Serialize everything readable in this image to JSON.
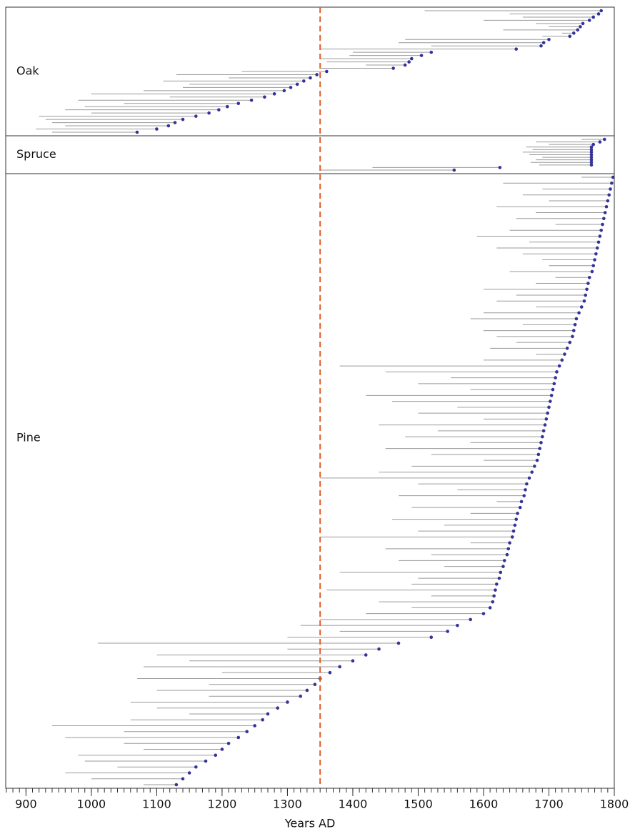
{
  "chart_data": {
    "type": "span",
    "xlabel": "Years AD",
    "xlim": [
      869,
      1800
    ],
    "xticks": [
      900,
      1000,
      1100,
      1200,
      1300,
      1400,
      1500,
      1600,
      1700,
      1800
    ],
    "xminorticks": [
      870,
      880,
      890,
      900,
      910,
      920,
      930,
      940,
      950,
      960,
      970,
      980,
      990,
      1000,
      1010,
      1020,
      1030,
      1040,
      1050,
      1060,
      1070,
      1080,
      1090,
      1100,
      1110,
      1120,
      1130,
      1140,
      1150,
      1160,
      1170,
      1180,
      1190,
      1200,
      1210,
      1220,
      1230,
      1240,
      1250,
      1260,
      1270,
      1280,
      1290,
      1300,
      1310,
      1320,
      1330,
      1340,
      1350,
      1360,
      1370,
      1380,
      1390,
      1400,
      1410,
      1420,
      1430,
      1440,
      1450,
      1460,
      1470,
      1480,
      1490,
      1500,
      1510,
      1520,
      1530,
      1540,
      1550,
      1560,
      1570,
      1580,
      1590,
      1600,
      1610,
      1620,
      1630,
      1640,
      1650,
      1660,
      1670,
      1680,
      1690,
      1700,
      1710,
      1720,
      1730,
      1740,
      1750,
      1760,
      1770,
      1780,
      1790,
      1800
    ],
    "line_color": "#9a9a9a",
    "dot_color": "#34339a",
    "reference_line": {
      "value": 1350,
      "color": "#e0602f"
    },
    "series": [
      {
        "name": "Oak",
        "start": [
          1510,
          1640,
          1660,
          1600,
          1680,
          1700,
          1630,
          1720,
          1690,
          1480,
          1470,
          1520,
          1350,
          1400,
          1395,
          1350,
          1360,
          1420,
          1350,
          1230,
          1130,
          1210,
          1110,
          1150,
          1140,
          1080,
          1000,
          1120,
          980,
          1050,
          990,
          960,
          1000,
          920,
          930,
          940,
          960,
          915,
          940
        ],
        "end": [
          1780,
          1776,
          1768,
          1762,
          1752,
          1748,
          1744,
          1738,
          1732,
          1700,
          1692,
          1688,
          1650,
          1520,
          1505,
          1490,
          1486,
          1480,
          1462,
          1360,
          1345,
          1335,
          1325,
          1315,
          1305,
          1295,
          1280,
          1265,
          1245,
          1225,
          1208,
          1195,
          1180,
          1160,
          1140,
          1128,
          1118,
          1100,
          1070
        ]
      },
      {
        "name": "Spruce",
        "start": [
          1750,
          1680,
          1700,
          1665,
          1675,
          1660,
          1670,
          1690,
          1680,
          1672,
          1685,
          1430,
          1350
        ],
        "end": [
          1785,
          1778,
          1768,
          1765,
          1765,
          1765,
          1765,
          1765,
          1765,
          1765,
          1765,
          1625,
          1555
        ]
      },
      {
        "name": "Pine",
        "start": [
          1750,
          1630,
          1690,
          1660,
          1700,
          1620,
          1680,
          1650,
          1710,
          1640,
          1590,
          1670,
          1620,
          1660,
          1690,
          1700,
          1640,
          1710,
          1680,
          1600,
          1650,
          1620,
          1680,
          1600,
          1580,
          1660,
          1600,
          1620,
          1650,
          1610,
          1680,
          1600,
          1380,
          1450,
          1550,
          1500,
          1580,
          1420,
          1460,
          1560,
          1500,
          1600,
          1440,
          1530,
          1480,
          1580,
          1450,
          1520,
          1600,
          1490,
          1440,
          1350,
          1500,
          1560,
          1470,
          1620,
          1490,
          1580,
          1460,
          1540,
          1500,
          1350,
          1580,
          1450,
          1520,
          1470,
          1540,
          1380,
          1500,
          1490,
          1360,
          1520,
          1440,
          1490,
          1420,
          1350,
          1320,
          1380,
          1300,
          1010,
          1300,
          1100,
          1150,
          1080,
          1200,
          1070,
          1180,
          1100,
          1180,
          1060,
          1100,
          1150,
          1060,
          940,
          1050,
          960,
          1050,
          1080,
          980,
          990,
          1040,
          960,
          1000,
          1080
        ],
        "end": [
          1798,
          1796,
          1794,
          1792,
          1790,
          1788,
          1786,
          1784,
          1782,
          1780,
          1778,
          1776,
          1774,
          1772,
          1770,
          1768,
          1766,
          1762,
          1760,
          1758,
          1756,
          1754,
          1750,
          1746,
          1742,
          1740,
          1738,
          1736,
          1732,
          1728,
          1724,
          1720,
          1716,
          1712,
          1710,
          1708,
          1706,
          1704,
          1702,
          1700,
          1698,
          1696,
          1694,
          1692,
          1690,
          1688,
          1686,
          1684,
          1682,
          1678,
          1674,
          1670,
          1666,
          1664,
          1662,
          1658,
          1656,
          1652,
          1650,
          1648,
          1646,
          1644,
          1640,
          1638,
          1636,
          1632,
          1630,
          1626,
          1624,
          1620,
          1618,
          1616,
          1614,
          1610,
          1600,
          1580,
          1560,
          1545,
          1520,
          1470,
          1440,
          1420,
          1400,
          1380,
          1365,
          1350,
          1342,
          1330,
          1320,
          1300,
          1285,
          1270,
          1262,
          1250,
          1238,
          1225,
          1210,
          1200,
          1190,
          1175,
          1160,
          1150,
          1140,
          1130
        ]
      }
    ]
  }
}
